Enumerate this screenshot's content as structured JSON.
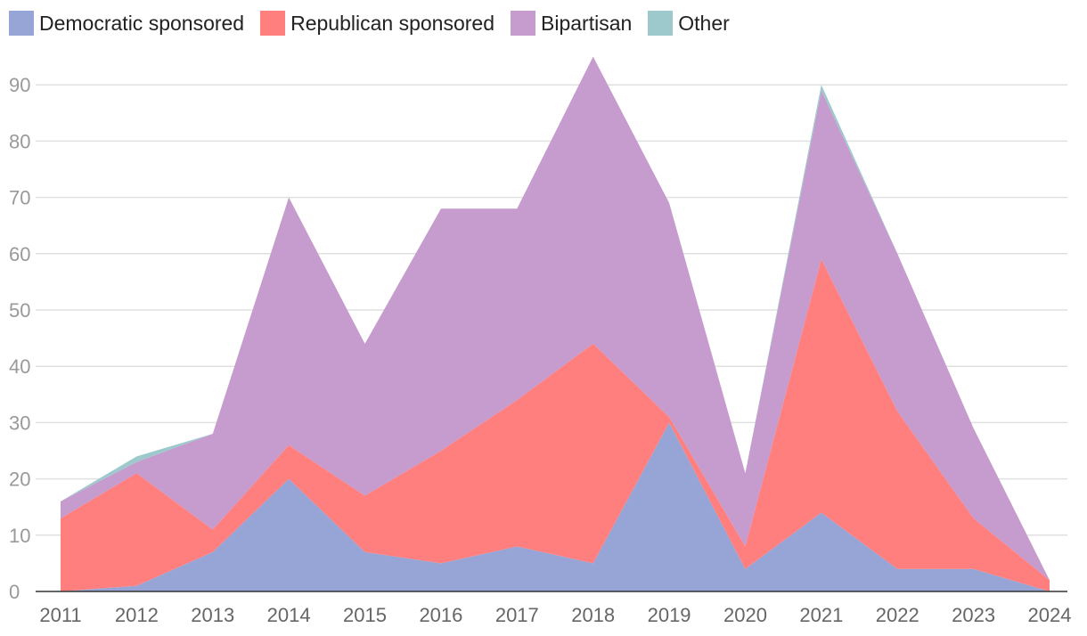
{
  "chart_data": {
    "type": "area",
    "stacked": true,
    "x": [
      2011,
      2012,
      2013,
      2014,
      2015,
      2016,
      2017,
      2018,
      2019,
      2020,
      2021,
      2022,
      2023,
      2024
    ],
    "series": [
      {
        "name": "Democratic sponsored",
        "color": "#97a4d6",
        "values": [
          0,
          1,
          7,
          20,
          7,
          5,
          8,
          5,
          30,
          4,
          14,
          4,
          4,
          0
        ]
      },
      {
        "name": "Republican sponsored",
        "color": "#ff7f7f",
        "values": [
          13,
          20,
          4,
          6,
          10,
          20,
          26,
          39,
          1,
          4,
          45,
          28,
          9,
          2
        ]
      },
      {
        "name": "Bipartisan",
        "color": "#c69bcd",
        "values": [
          3,
          2,
          17,
          44,
          27,
          43,
          34,
          51,
          38,
          13,
          30,
          28,
          16,
          0
        ]
      },
      {
        "name": "Other",
        "color": "#9dc9cd",
        "values": [
          0,
          1,
          0,
          0,
          0,
          0,
          0,
          0,
          0,
          0,
          1,
          0,
          0,
          0
        ]
      }
    ],
    "yticks": [
      0,
      10,
      20,
      30,
      40,
      50,
      60,
      70,
      80,
      90
    ],
    "ylim": [
      0,
      95
    ],
    "grid": true,
    "legend": "top-left",
    "title": "",
    "xlabel": "",
    "ylabel": ""
  }
}
